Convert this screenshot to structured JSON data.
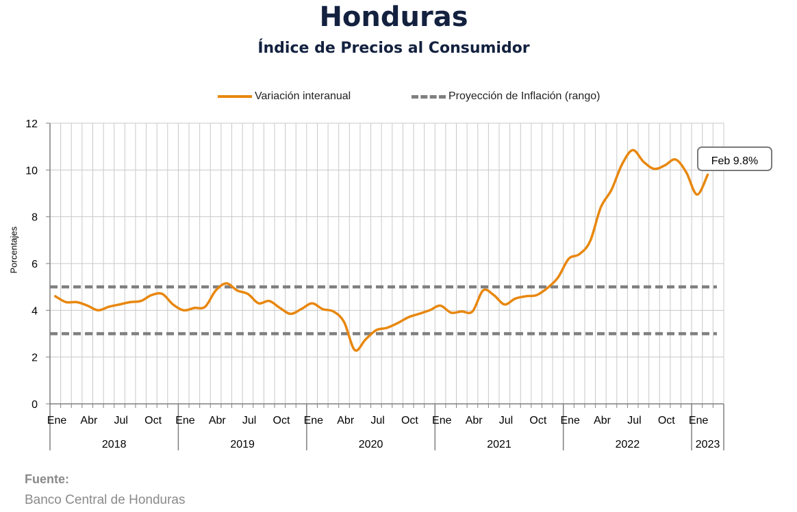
{
  "chart_data": {
    "type": "line",
    "title": "Honduras",
    "subtitle": "Índice de Precios al Consumidor",
    "ylabel": "Porcentajes",
    "ylim": [
      0,
      12
    ],
    "yticks": [
      0,
      2,
      4,
      6,
      8,
      10,
      12
    ],
    "grid": true,
    "legend_position": "top",
    "x_month_labels": [
      "Ene",
      "Abr",
      "Jul",
      "Oct",
      "Ene",
      "Abr",
      "Jul",
      "Oct",
      "Ene",
      "Abr",
      "Jul",
      "Oct",
      "Ene",
      "Abr",
      "Jul",
      "Oct",
      "Ene",
      "Abr",
      "Jul",
      "Oct",
      "Ene"
    ],
    "x_years": [
      "2018",
      "2019",
      "2020",
      "2021",
      "2022",
      "2023"
    ],
    "series": [
      {
        "name": "Variación interanual",
        "color": "#e8870e",
        "style": "solid",
        "x_start": "2018-01",
        "values": [
          4.6,
          4.35,
          4.35,
          4.2,
          4.0,
          4.15,
          4.25,
          4.35,
          4.4,
          4.65,
          4.7,
          4.25,
          4.0,
          4.1,
          4.15,
          4.85,
          5.15,
          4.85,
          4.7,
          4.3,
          4.4,
          4.1,
          3.85,
          4.05,
          4.3,
          4.05,
          3.95,
          3.5,
          2.3,
          2.75,
          3.15,
          3.25,
          3.45,
          3.7,
          3.85,
          4.0,
          4.2,
          3.9,
          3.95,
          3.95,
          4.85,
          4.65,
          4.25,
          4.5,
          4.6,
          4.65,
          4.95,
          5.4,
          6.2,
          6.4,
          6.95,
          8.4,
          9.15,
          10.25,
          10.85,
          10.35,
          10.05,
          10.2,
          10.45,
          9.9,
          8.95,
          9.8
        ]
      },
      {
        "name": "Proyección de Inflación (rango)",
        "color": "#7f7f7f",
        "style": "dashed",
        "lower": 3,
        "upper": 5
      }
    ],
    "annotation": "Feb 9.8%"
  },
  "source": {
    "label": "Fuente:",
    "text": "Banco Central de Honduras"
  }
}
